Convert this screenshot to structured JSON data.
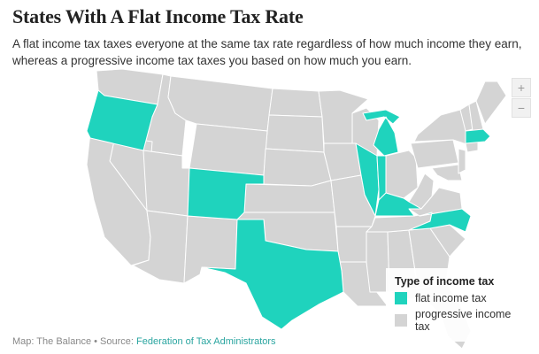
{
  "title": "States With A Flat Income Tax Rate",
  "subtitle": "A flat income tax taxes everyone at the same tax rate regardless of how much income they earn, whereas a progressive income tax taxes you based on how much you earn.",
  "zoom": {
    "in_label": "+",
    "out_label": "−"
  },
  "legend": {
    "title": "Type of income tax",
    "items": [
      {
        "label": "flat income tax",
        "color": "#1fd3bd"
      },
      {
        "label": "progressive income tax",
        "color": "#d4d4d4"
      }
    ]
  },
  "colors": {
    "flat": "#1fd3bd",
    "progressive": "#d4d4d4",
    "border": "#ffffff"
  },
  "flat_states": [
    "Oregon",
    "Colorado",
    "Texas",
    "Illinois",
    "Indiana",
    "Michigan",
    "Kentucky",
    "North Carolina",
    "Massachusetts"
  ],
  "footer": {
    "prefix": "Map: The Balance • Source: ",
    "link": "Federation of Tax Administrators"
  }
}
